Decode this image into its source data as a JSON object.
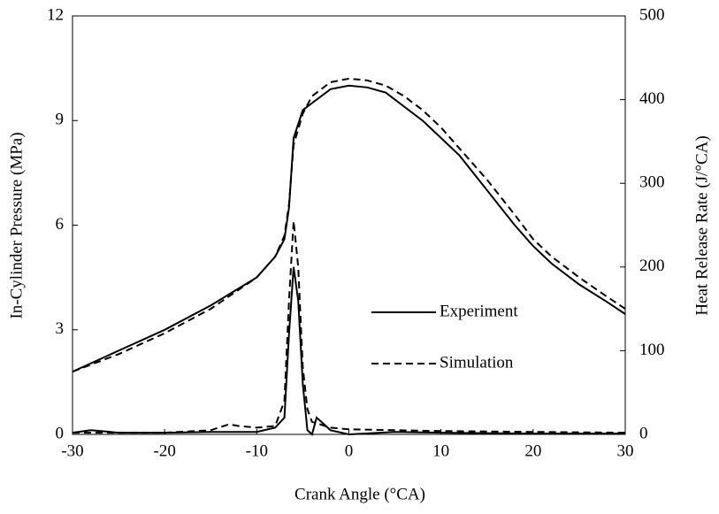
{
  "chart_data": {
    "type": "line",
    "xlabel": "Crank Angle  (°CA)",
    "ylabel": "In-Cylinder Pressure (MPa)",
    "y2label": "Heat Release Rate (J/°CA)",
    "xlim": [
      -30,
      30
    ],
    "xticks": [
      -30,
      -20,
      -10,
      0,
      10,
      20,
      30
    ],
    "ylim": [
      0,
      12
    ],
    "yticks": [
      0,
      3,
      6,
      9,
      12
    ],
    "y2lim": [
      0,
      500
    ],
    "y2ticks": [
      0,
      100,
      200,
      300,
      400,
      500
    ],
    "legend": "right",
    "series": [
      {
        "name": "Experiment",
        "color": "#000000",
        "dash": false,
        "x": [
          -30,
          -25,
          -20,
          -15,
          -10,
          -8,
          -7,
          -6.5,
          -6,
          -5,
          -4,
          -3,
          -2,
          0,
          2,
          4,
          6,
          8,
          10,
          12,
          15,
          18,
          20,
          22,
          25,
          28,
          30
        ],
        "values": [
          1.8,
          2.4,
          3.0,
          3.7,
          4.5,
          5.1,
          5.6,
          6.5,
          8.5,
          9.3,
          9.5,
          9.7,
          9.9,
          10.0,
          9.95,
          9.8,
          9.4,
          9.0,
          8.5,
          8.0,
          7.0,
          6.0,
          5.4,
          4.9,
          4.3,
          3.8,
          3.45
        ]
      },
      {
        "name": "Simulation",
        "color": "#000000",
        "dash": true,
        "x": [
          -30,
          -25,
          -20,
          -15,
          -10,
          -8,
          -7,
          -6.5,
          -6,
          -5,
          -4,
          -3,
          -2,
          0,
          2,
          4,
          6,
          8,
          10,
          12,
          15,
          18,
          20,
          22,
          25,
          28,
          30
        ],
        "values": [
          1.8,
          2.3,
          2.9,
          3.6,
          4.5,
          5.1,
          5.7,
          6.6,
          8.3,
          9.2,
          9.7,
          9.9,
          10.1,
          10.2,
          10.15,
          10.0,
          9.7,
          9.3,
          8.8,
          8.2,
          7.3,
          6.3,
          5.6,
          5.1,
          4.5,
          3.95,
          3.6
        ]
      },
      {
        "color": "#000000",
        "dash": false,
        "axis": "y2",
        "x": [
          -30,
          -28,
          -25,
          -20,
          -15,
          -12,
          -10,
          -8,
          -7,
          -6.5,
          -6,
          -5.5,
          -5,
          -4.5,
          -4,
          -3.5,
          -3,
          -2,
          0,
          5,
          10,
          20,
          30
        ],
        "values": [
          2,
          5,
          2,
          2,
          3,
          3,
          3,
          8,
          20,
          120,
          200,
          160,
          60,
          5,
          0,
          20,
          15,
          5,
          0,
          3,
          2,
          1,
          1
        ]
      },
      {
        "color": "#000000",
        "dash": true,
        "axis": "y2",
        "x": [
          -30,
          -20,
          -15,
          -13,
          -12,
          -10,
          -8,
          -7,
          -6.5,
          -6,
          -5.5,
          -5,
          -4.5,
          -4,
          -2,
          0,
          5,
          10,
          20,
          30
        ],
        "values": [
          2,
          2,
          5,
          12,
          10,
          8,
          10,
          40,
          160,
          255,
          200,
          80,
          30,
          15,
          8,
          6,
          5,
          4,
          3,
          2
        ]
      }
    ]
  }
}
